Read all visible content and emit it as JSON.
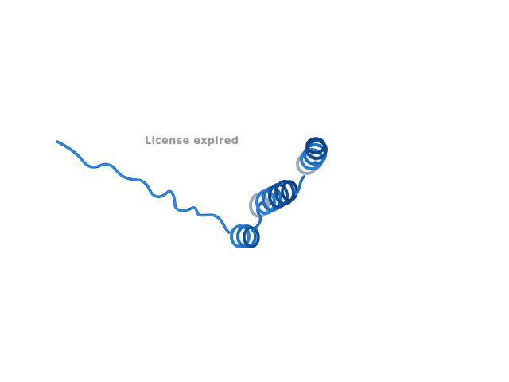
{
  "watermark": {
    "text": "License expired",
    "color": "#9a9a9a"
  },
  "structure": {
    "representation": "cartoon",
    "colors": {
      "coil": "#1e6fc0",
      "coil_highlight": "#4aa3f0",
      "helix_front": "#124e96",
      "helix_back": "#2f7fd0",
      "helix_shadow": "#5b6f86"
    }
  }
}
